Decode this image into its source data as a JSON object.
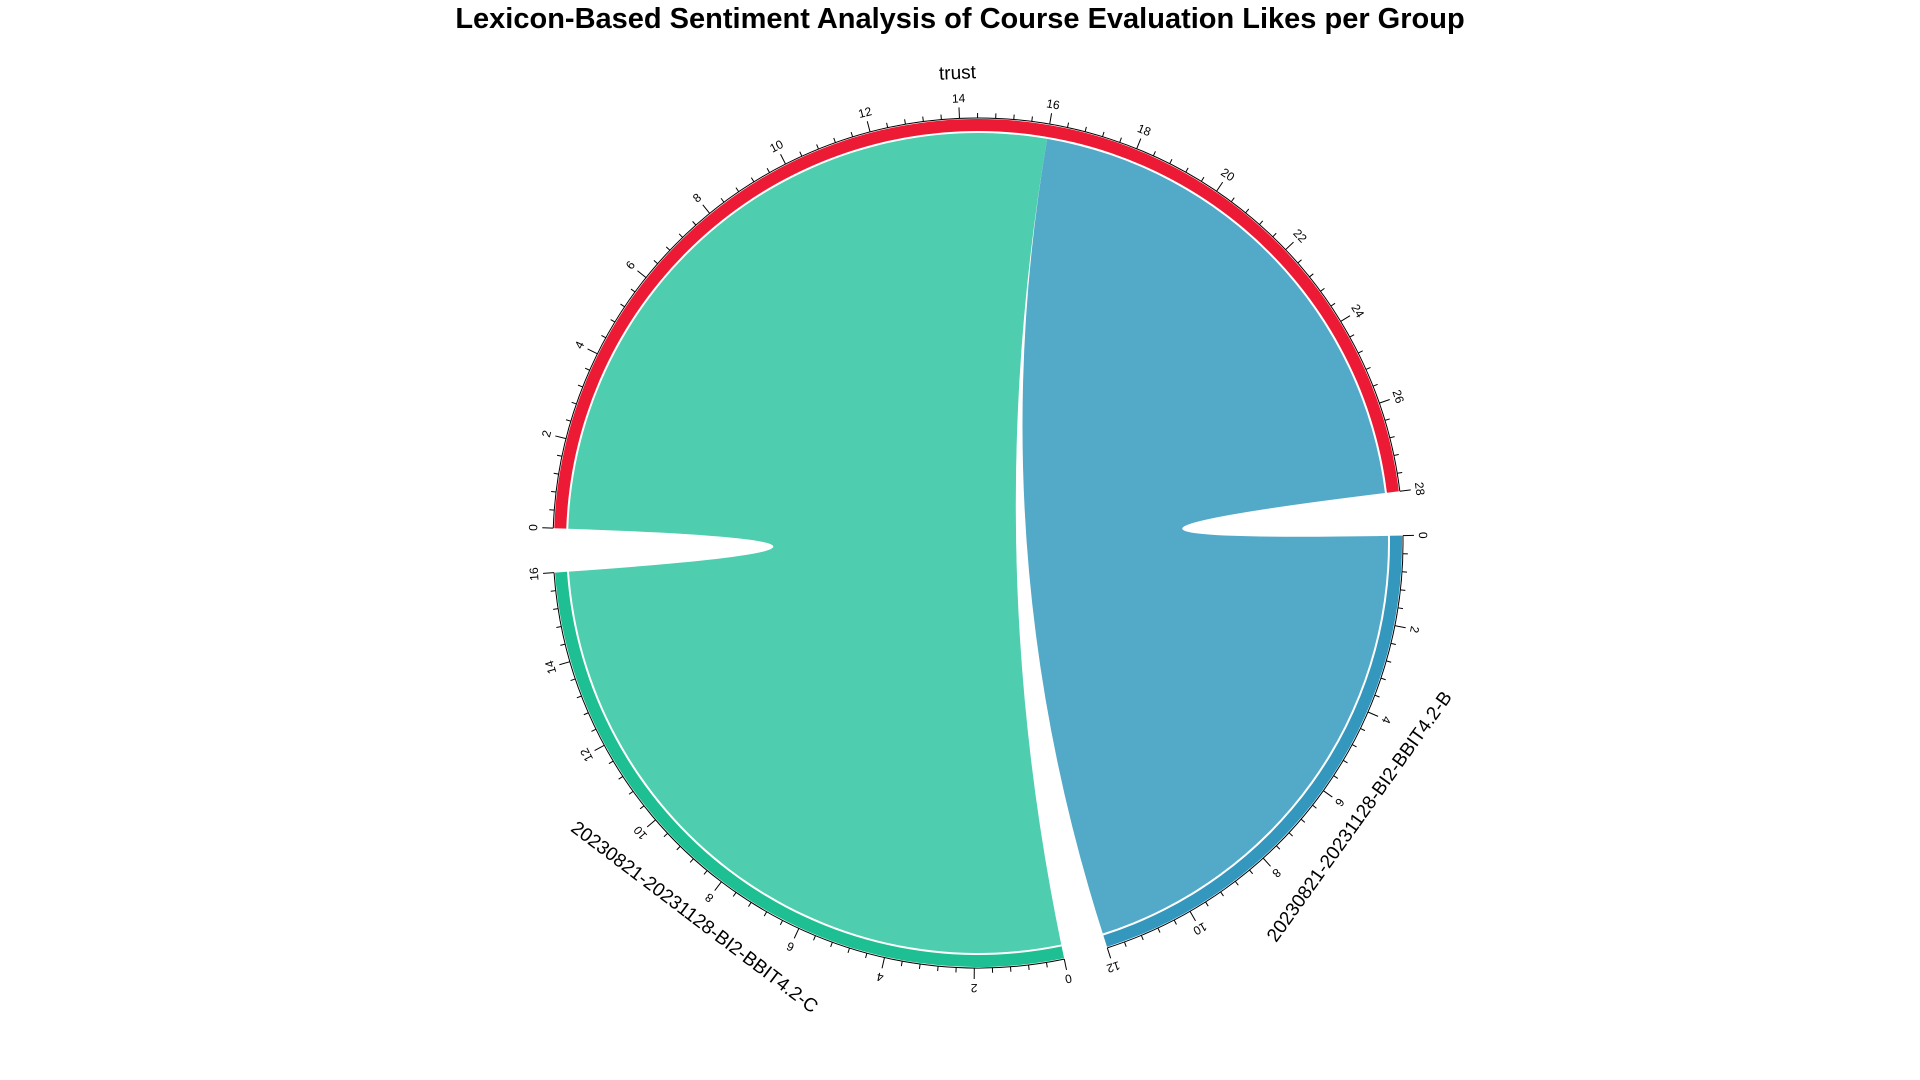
{
  "chart_data": {
    "type": "chord",
    "title": "Lexicon-Based Sentiment Analysis of Course Evaluation Likes per Group",
    "sectors": [
      {
        "name": "trust",
        "total": 28,
        "color": "#ec1a34",
        "tick_step": 2
      },
      {
        "name": "20230821-20231128-BI2-BBIT4.2-B",
        "total": 12,
        "color": "#3497be",
        "tick_step": 2
      },
      {
        "name": "20230821-20231128-BI2-BBIT4.2-C",
        "total": 16,
        "color": "#1fbf94",
        "tick_step": 2
      }
    ],
    "links": [
      {
        "from": "trust",
        "to": "20230821-20231128-BI2-BBIT4.2-C",
        "value": 16,
        "color": "#4ecdaf"
      },
      {
        "from": "trust",
        "to": "20230821-20231128-BI2-BBIT4.2-B",
        "value": 12,
        "color": "#53a9c8"
      }
    ]
  }
}
